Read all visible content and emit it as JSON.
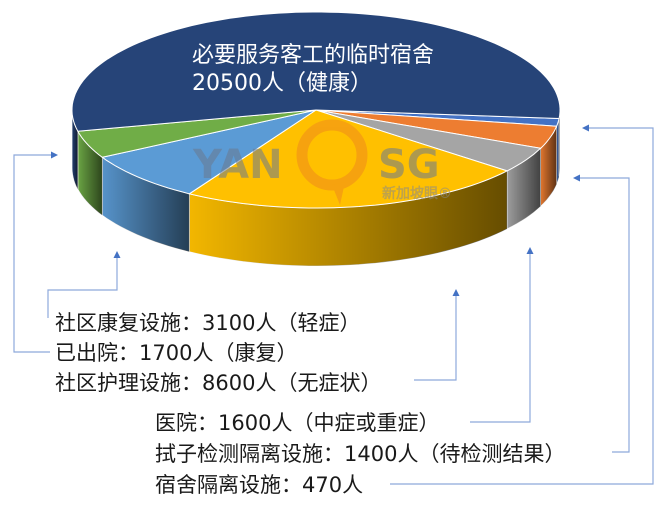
{
  "chart_data": {
    "type": "pie",
    "style": "3d",
    "slices": [
      {
        "label": "宿舍隔离设施",
        "value": 470,
        "color": "#4472C4",
        "text": "宿舍隔离设施：470人"
      },
      {
        "label": "拭子检测隔离设施",
        "value": 1400,
        "color": "#ED7D31",
        "text": "拭子检测隔离设施：1400人（待检测结果）"
      },
      {
        "label": "医院",
        "value": 1600,
        "color": "#A5A5A5",
        "text": "医院：1600人（中症或重症）"
      },
      {
        "label": "社区护理设施",
        "value": 8600,
        "color": "#FFC000",
        "text": "社区护理设施：8600人（无症状）"
      },
      {
        "label": "社区康复设施",
        "value": 3100,
        "color": "#5B9BD5",
        "text": "社区康复设施：3100人（轻症）"
      },
      {
        "label": "已出院",
        "value": 1700,
        "color": "#70AD47",
        "text": "已出院：1700人（康复）"
      },
      {
        "label": "必要服务客工的临时宿舍",
        "value": 20500,
        "color": "#264478",
        "text_line1": "必要服务客工的临时宿舍",
        "text_line2": "20500人（健康）"
      }
    ],
    "legend": "none"
  },
  "watermark": {
    "text_left": "YAN",
    "text_right": "SG",
    "subtitle": "新加坡眼®"
  },
  "leader_color": "#8EA9DB"
}
